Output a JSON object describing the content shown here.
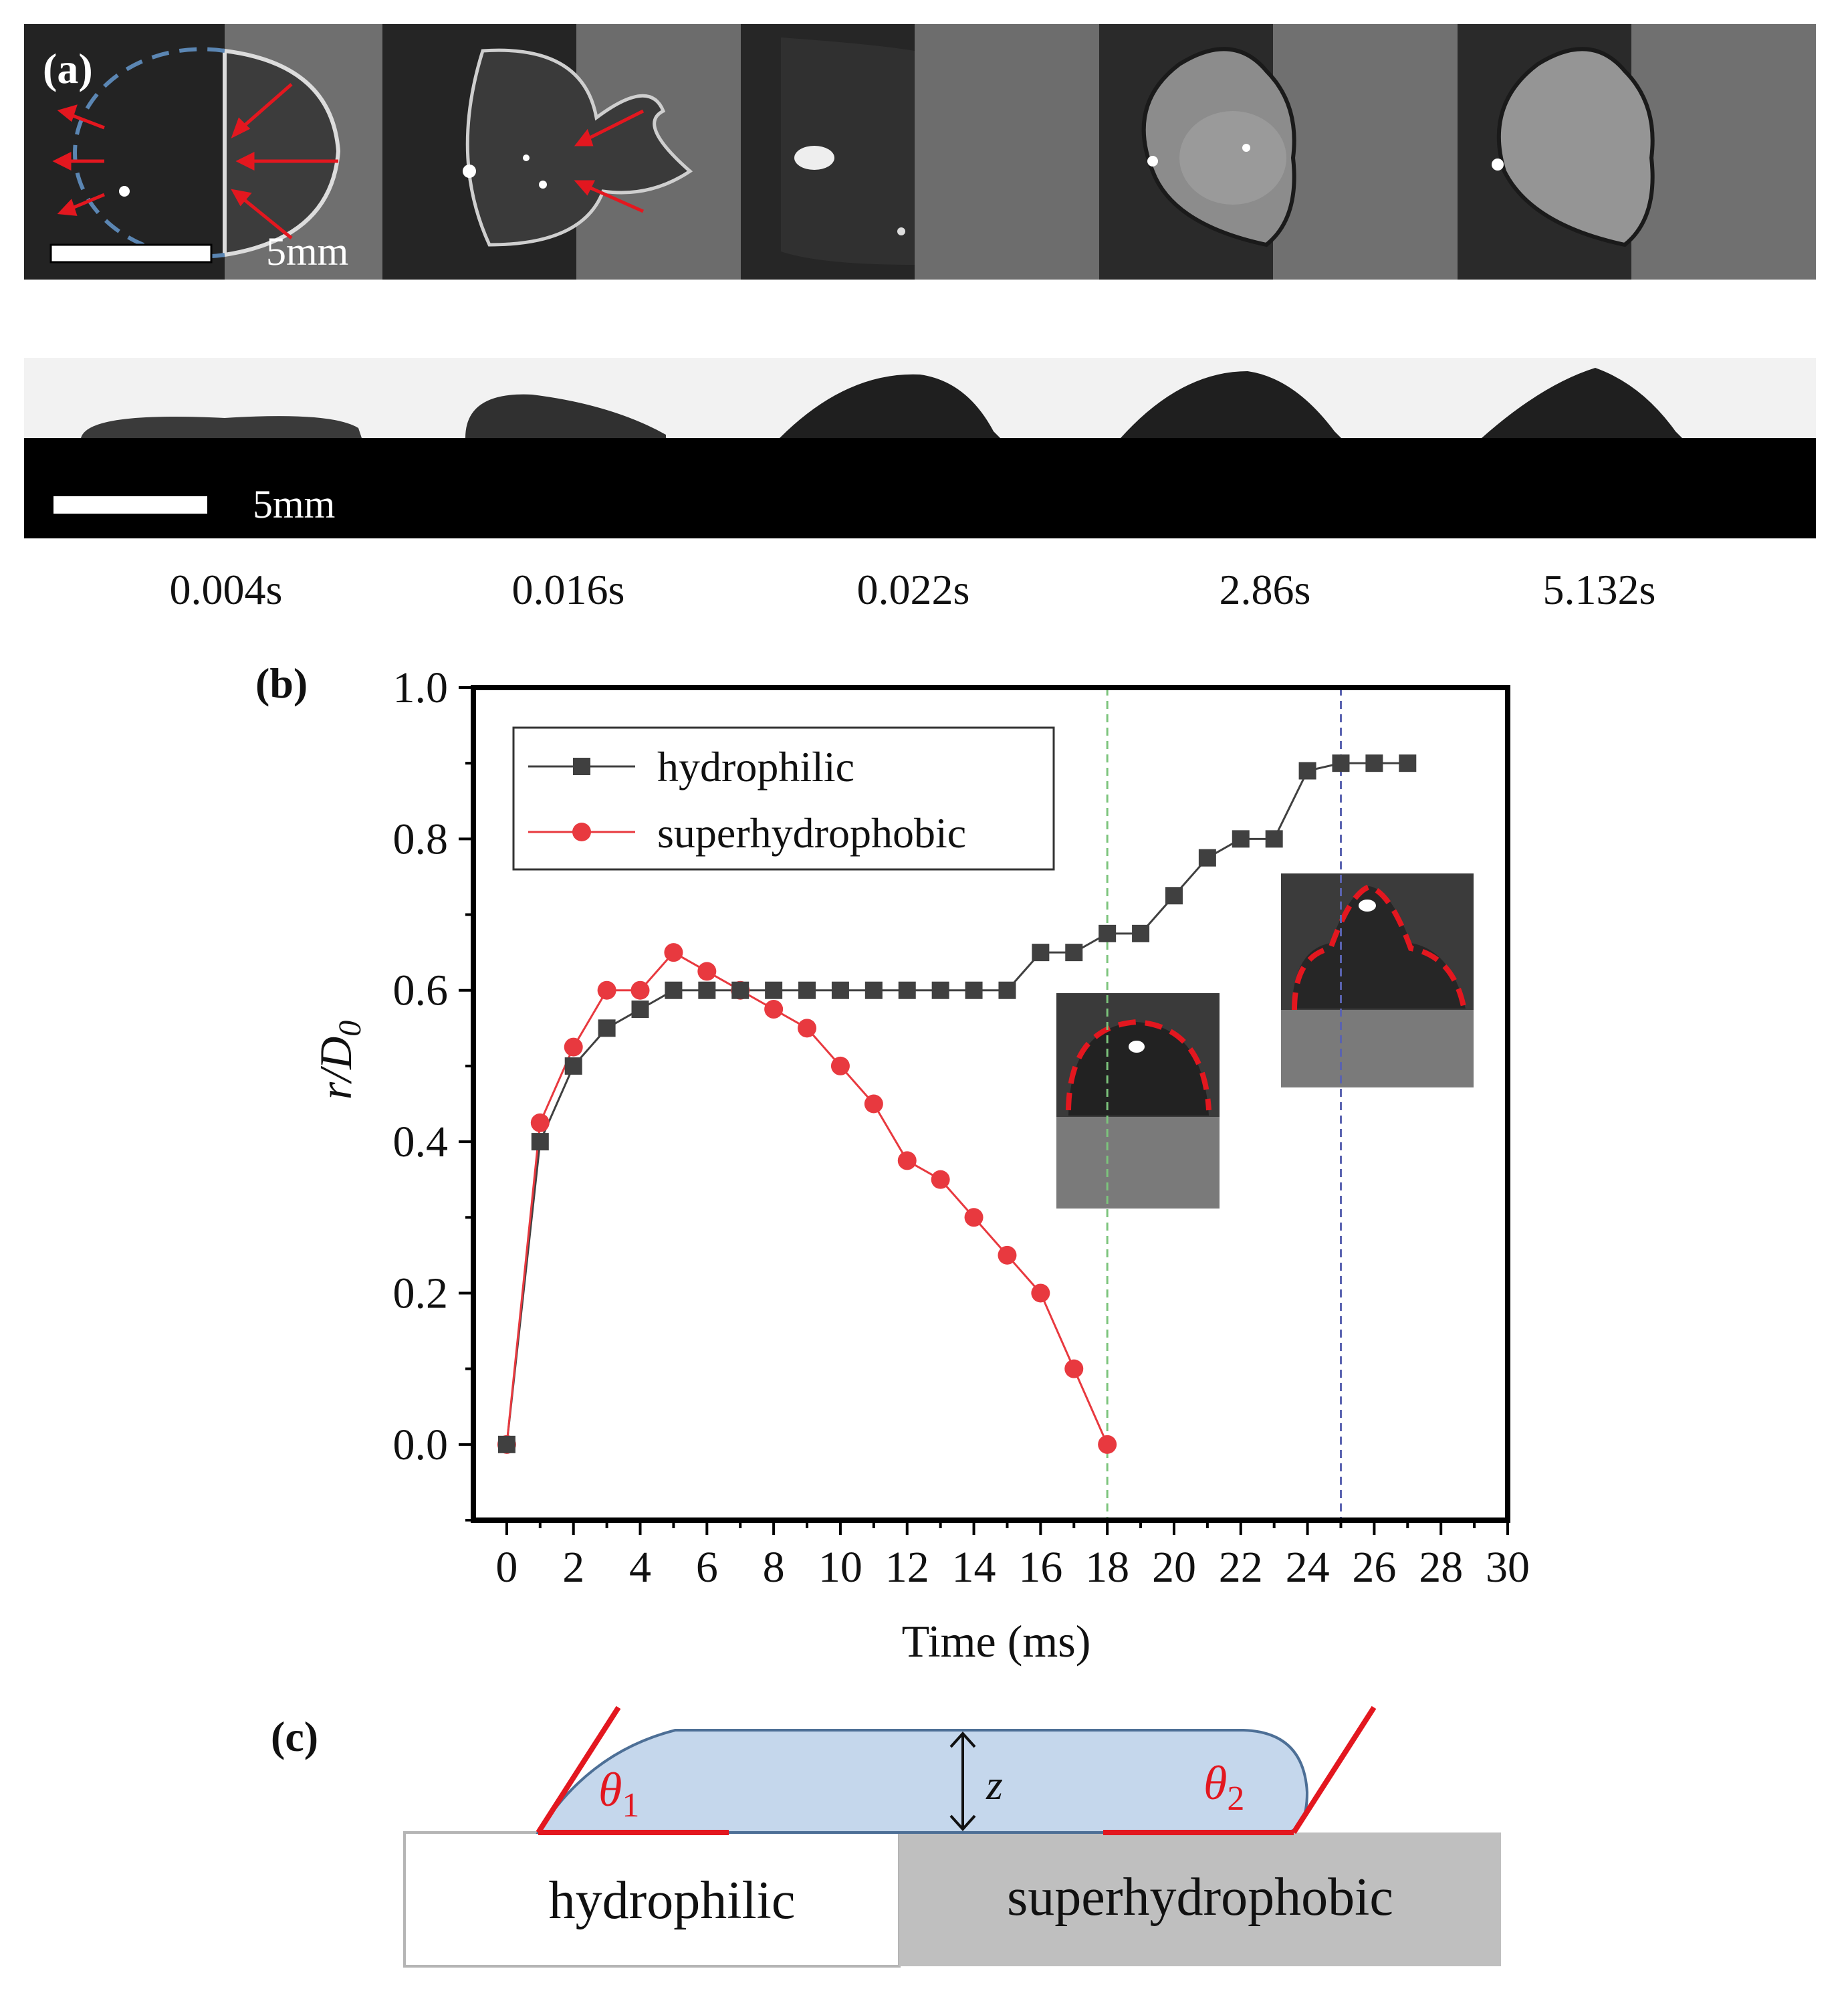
{
  "panel_a": {
    "tag": "(a)",
    "scale_top": "5mm",
    "scale_bottom": "5mm",
    "times": [
      "0.004s",
      "0.016s",
      "0.022s",
      "2.86s",
      "5.132s"
    ]
  },
  "panel_b": {
    "tag": "(b)"
  },
  "panel_c": {
    "tag": "(c)",
    "theta1": "θ",
    "theta1_sub": "1",
    "theta2": "θ",
    "theta2_sub": "2",
    "height_label": "z",
    "left_region": "hydrophilic",
    "right_region": "superhydrophobic"
  },
  "colors": {
    "hydrophilic": "#404040",
    "superhydrophobic": "#e8393f",
    "marker_line_green": "#7cc47c",
    "marker_line_blue": "#5a63b0",
    "droplet_fill": "#c5d7ec",
    "annotation_red": "#e3171f"
  },
  "chart_data": {
    "type": "line",
    "xlabel": "Time (ms)",
    "ylabel": "r/D",
    "ylabel_sub": "0",
    "xlim": [
      -1,
      30
    ],
    "ylim": [
      -0.1,
      1.0
    ],
    "xticks": [
      0,
      2,
      4,
      6,
      8,
      10,
      12,
      14,
      16,
      18,
      20,
      22,
      24,
      26,
      28,
      30
    ],
    "yticks": [
      0.0,
      0.2,
      0.4,
      0.6,
      0.8,
      1.0
    ],
    "ytick_labels": [
      "0.0",
      "0.2",
      "0.4",
      "0.6",
      "0.8",
      "1.0"
    ],
    "legend_position": "top-left",
    "vertical_lines": [
      18,
      25
    ],
    "series": [
      {
        "name": "hydrophilic",
        "marker": "square",
        "x": [
          0,
          1,
          2,
          3,
          4,
          5,
          6,
          7,
          8,
          9,
          10,
          11,
          12,
          13,
          14,
          15,
          16,
          17,
          18,
          19,
          20,
          21,
          22,
          23,
          24,
          25,
          26,
          27
        ],
        "y": [
          0.0,
          0.4,
          0.5,
          0.55,
          0.575,
          0.6,
          0.6,
          0.6,
          0.6,
          0.6,
          0.6,
          0.6,
          0.6,
          0.6,
          0.6,
          0.6,
          0.65,
          0.65,
          0.675,
          0.675,
          0.725,
          0.775,
          0.8,
          0.8,
          0.89,
          0.9,
          0.9,
          0.9
        ]
      },
      {
        "name": "superhydrophobic",
        "marker": "circle",
        "x": [
          0,
          1,
          2,
          3,
          4,
          5,
          6,
          7,
          8,
          9,
          10,
          11,
          12,
          13,
          14,
          15,
          16,
          17,
          18
        ],
        "y": [
          0.0,
          0.425,
          0.525,
          0.6,
          0.6,
          0.65,
          0.625,
          0.6,
          0.575,
          0.55,
          0.5,
          0.45,
          0.375,
          0.35,
          0.3,
          0.25,
          0.2,
          0.1,
          0.0
        ]
      }
    ]
  }
}
